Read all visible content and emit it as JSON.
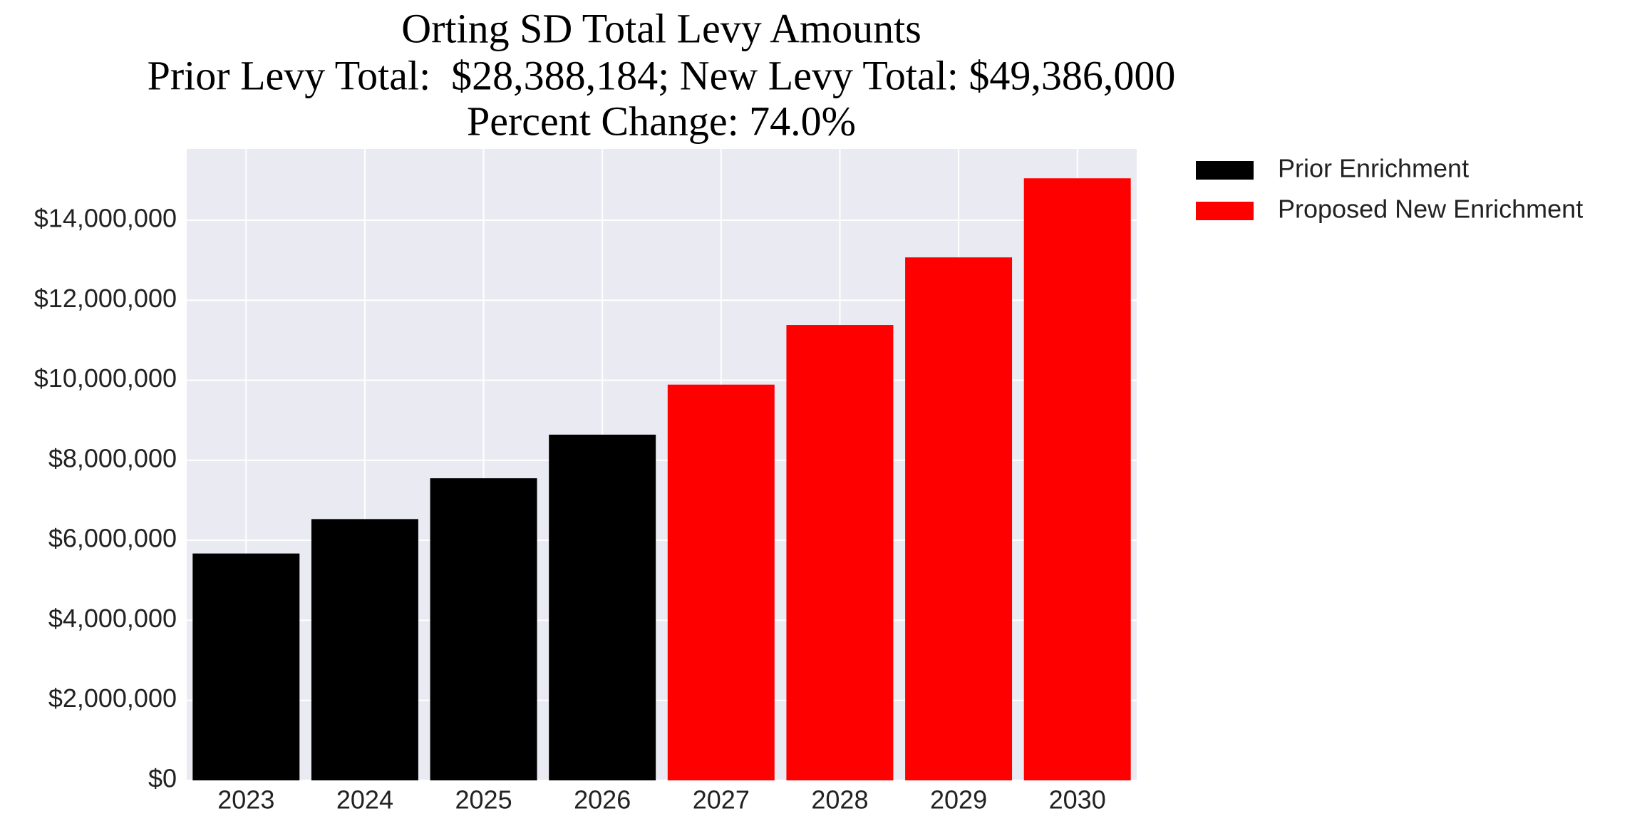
{
  "chart_data": {
    "type": "bar",
    "title": "Orting SD Total Levy Amounts",
    "subtitle": [
      "Prior Levy Total:  $28,388,184; New Levy Total: $49,386,000",
      "Percent Change: 74.0%"
    ],
    "categories": [
      "2023",
      "2024",
      "2025",
      "2026",
      "2027",
      "2028",
      "2029",
      "2030"
    ],
    "series": [
      {
        "name": "Prior Enrichment",
        "color": "#000000",
        "values": [
          5670000,
          6530000,
          7550000,
          8640000,
          null,
          null,
          null,
          null
        ]
      },
      {
        "name": "Proposed New Enrichment",
        "color": "#ff0000",
        "values": [
          null,
          null,
          null,
          null,
          9890000,
          11380000,
          13070000,
          15046000
        ]
      }
    ],
    "ylim": [
      0,
      15780000
    ],
    "yticks": [
      {
        "value": 0,
        "label": "$0"
      },
      {
        "value": 2000000,
        "label": "$2,000,000"
      },
      {
        "value": 4000000,
        "label": "$4,000,000"
      },
      {
        "value": 6000000,
        "label": "$6,000,000"
      },
      {
        "value": 8000000,
        "label": "$8,000,000"
      },
      {
        "value": 10000000,
        "label": "$10,000,000"
      },
      {
        "value": 12000000,
        "label": "$12,000,000"
      },
      {
        "value": 14000000,
        "label": "$14,000,000"
      }
    ],
    "grid": true,
    "legend": "outside right"
  }
}
